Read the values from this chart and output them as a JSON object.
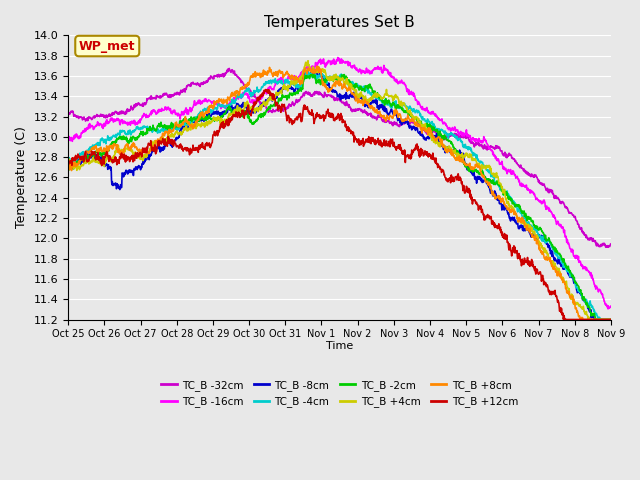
{
  "title": "Temperatures Set B",
  "xlabel": "Time",
  "ylabel": "Temperature (C)",
  "ylim": [
    11.2,
    14.0
  ],
  "yticks": [
    11.2,
    11.4,
    11.6,
    11.8,
    12.0,
    12.2,
    12.4,
    12.6,
    12.8,
    13.0,
    13.2,
    13.4,
    13.6,
    13.8,
    14.0
  ],
  "xtick_labels": [
    "Oct 25",
    "Oct 26",
    "Oct 27",
    "Oct 28",
    "Oct 29",
    "Oct 30",
    "Oct 31",
    "Nov 1",
    "Nov 2",
    "Nov 3",
    "Nov 4",
    "Nov 5",
    "Nov 6",
    "Nov 7",
    "Nov 8",
    "Nov 9"
  ],
  "n_points": 1440,
  "series": {
    "TC_B -32cm": {
      "color": "#CC00CC",
      "lw": 1.2
    },
    "TC_B -16cm": {
      "color": "#FF00FF",
      "lw": 1.2
    },
    "TC_B -8cm": {
      "color": "#0000CC",
      "lw": 1.2
    },
    "TC_B -4cm": {
      "color": "#00CCCC",
      "lw": 1.2
    },
    "TC_B -2cm": {
      "color": "#00CC00",
      "lw": 1.2
    },
    "TC_B +4cm": {
      "color": "#CCCC00",
      "lw": 1.2
    },
    "TC_B +8cm": {
      "color": "#FF8800",
      "lw": 1.2
    },
    "TC_B +12cm": {
      "color": "#CC0000",
      "lw": 1.2
    }
  },
  "annotation_text": "WP_met",
  "annotation_color": "#CC0000",
  "annotation_bg": "#FFFFCC",
  "bg_color": "#E8E8E8",
  "plot_bg": "#E8E8E8"
}
